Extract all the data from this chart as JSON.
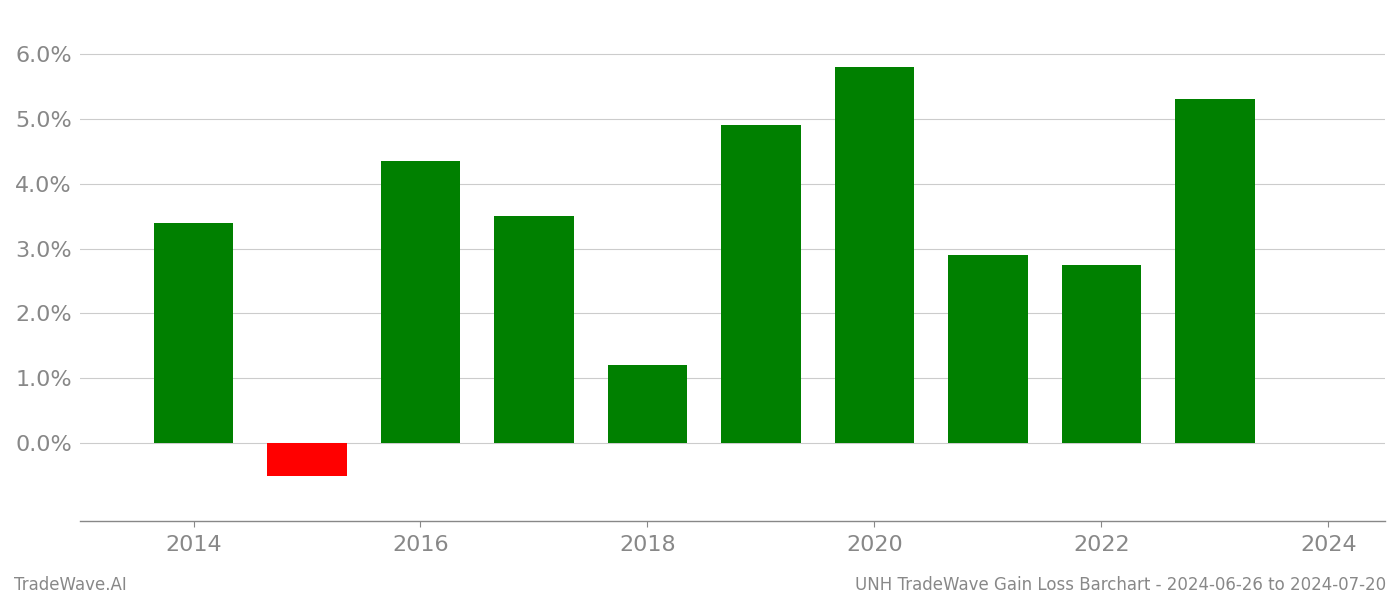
{
  "years": [
    2014,
    2015,
    2016,
    2017,
    2018,
    2019,
    2020,
    2021,
    2022,
    2023
  ],
  "values": [
    0.034,
    -0.005,
    0.0435,
    0.035,
    0.012,
    0.049,
    0.058,
    0.029,
    0.0275,
    0.053
  ],
  "colors": [
    "#008000",
    "#ff0000",
    "#008000",
    "#008000",
    "#008000",
    "#008000",
    "#008000",
    "#008000",
    "#008000",
    "#008000"
  ],
  "ylim_min": -0.012,
  "ylim_max": 0.066,
  "ytick_values": [
    0.0,
    0.01,
    0.02,
    0.03,
    0.04,
    0.05,
    0.06
  ],
  "xtick_positions": [
    2014,
    2016,
    2018,
    2020,
    2022,
    2024
  ],
  "xtick_labels": [
    "2014",
    "2016",
    "2018",
    "2020",
    "2022",
    "2024"
  ],
  "footer_left": "TradeWave.AI",
  "footer_right": "UNH TradeWave Gain Loss Barchart - 2024-06-26 to 2024-07-20",
  "bar_width": 0.7,
  "xlim_min": 2013.0,
  "xlim_max": 2024.5,
  "background_color": "#ffffff",
  "grid_color": "#cccccc",
  "axis_color": "#888888",
  "tick_color": "#888888",
  "tick_fontsize": 16,
  "footer_fontsize": 12
}
